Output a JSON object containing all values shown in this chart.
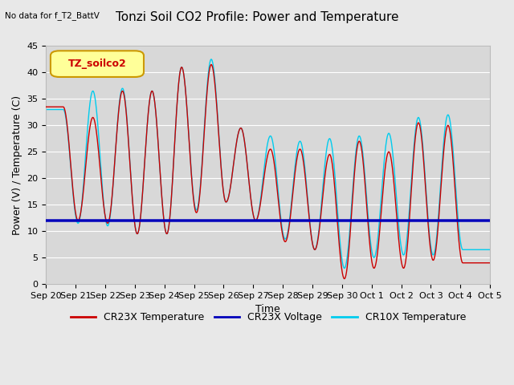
{
  "title": "Tonzi Soil CO2 Profile: Power and Temperature",
  "subtitle": "No data for f_T2_BattV",
  "ylabel": "Power (V) / Temperature (C)",
  "xlabel": "Time",
  "ylim": [
    0,
    45
  ],
  "voltage_value": 12.0,
  "bg_color": "#e8e8e8",
  "plot_bg_color": "#d8d8d8",
  "cr23x_temp_color": "#cc0000",
  "cr23x_volt_color": "#0000bb",
  "cr10x_temp_color": "#00ccee",
  "legend_label_color": "#cc0000",
  "legend_box_color": "#ffff99",
  "legend_box_edge": "#cc9900",
  "xtick_labels": [
    "Sep 20",
    "Sep 21",
    "Sep 22",
    "Sep 23",
    "Sep 24",
    "Sep 25",
    "Sep 26",
    "Sep 27",
    "Sep 28",
    "Sep 29",
    "Sep 30",
    "Oct 1",
    "Oct 2",
    "Oct 3",
    "Oct 4",
    "Oct 5"
  ],
  "ytick_values": [
    0,
    5,
    10,
    15,
    20,
    25,
    30,
    35,
    40,
    45
  ],
  "grid_color": "#ffffff",
  "title_fontsize": 11,
  "axis_fontsize": 9,
  "tick_fontsize": 8,
  "legend_fontsize": 9,
  "legend_box_label": "TZ_soilco2",
  "cr23x_peaks": [
    33.5,
    12.0,
    31.5,
    11.5,
    36.5,
    9.5,
    36.5,
    9.5,
    41.0,
    13.5,
    41.5,
    15.5,
    29.5,
    12.0,
    25.5,
    8.0,
    25.5,
    6.5,
    24.5,
    1.0,
    27.0,
    3.0,
    25.0,
    3.0,
    30.5,
    4.5,
    30.0,
    4.0
  ],
  "cr10x_peaks": [
    33.0,
    11.5,
    36.5,
    11.0,
    37.0,
    9.5,
    36.5,
    9.5,
    41.0,
    14.0,
    42.5,
    15.5,
    29.5,
    12.0,
    28.0,
    8.5,
    27.0,
    6.5,
    27.5,
    3.0,
    28.0,
    5.0,
    28.5,
    5.5,
    31.5,
    5.5,
    32.0,
    6.5
  ]
}
